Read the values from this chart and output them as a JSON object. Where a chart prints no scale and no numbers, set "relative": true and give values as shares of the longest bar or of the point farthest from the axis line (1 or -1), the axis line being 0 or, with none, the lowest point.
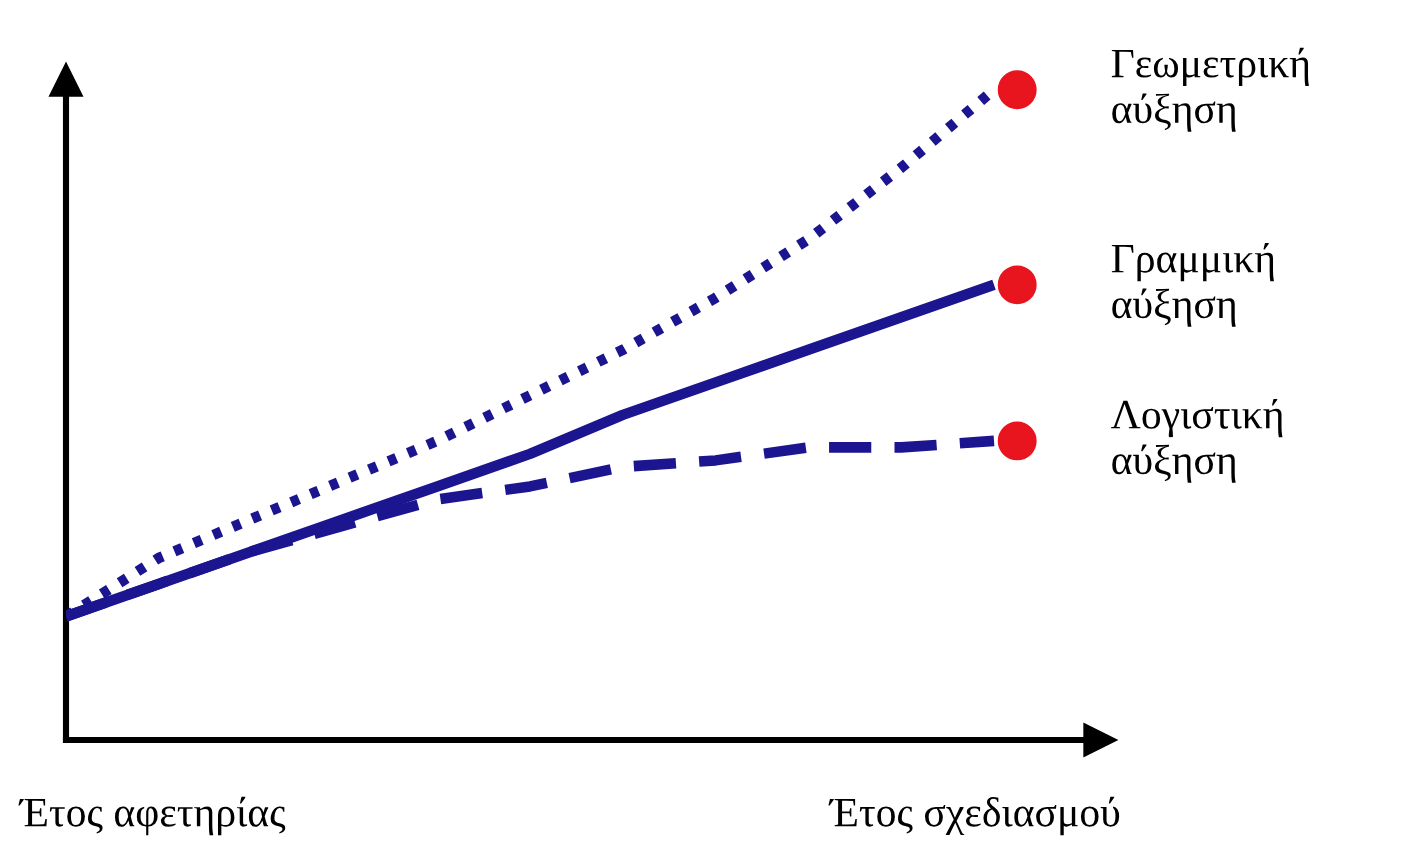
{
  "chart_data": {
    "type": "line",
    "relative": true,
    "legend": false,
    "grid": false,
    "categories": [
      null,
      null,
      null,
      null,
      null,
      null,
      null,
      null,
      null,
      null,
      null
    ],
    "series": [
      {
        "name": "Γεωμετρική αύξηση",
        "color": "#1c1590",
        "line_style": "dotted",
        "values": [
          0.19,
          0.28,
          0.34,
          0.4,
          0.46,
          0.53,
          0.6,
          0.68,
          0.77,
          0.88,
          1.0
        ]
      },
      {
        "name": "Γραμμική αύξηση",
        "color": "#1c1590",
        "line_style": "solid",
        "values": [
          0.19,
          0.24,
          0.29,
          0.34,
          0.39,
          0.44,
          0.5,
          0.55,
          0.6,
          0.65,
          0.7
        ]
      },
      {
        "name": "Λογιστική αύξηση",
        "color": "#1c1590",
        "line_style": "dashed",
        "values": [
          0.19,
          0.24,
          0.29,
          0.33,
          0.37,
          0.39,
          0.42,
          0.43,
          0.45,
          0.45,
          0.46
        ]
      }
    ],
    "annotations": [
      "Έτος αφετηρίας",
      "Έτος σχεδιασμού"
    ]
  }
}
